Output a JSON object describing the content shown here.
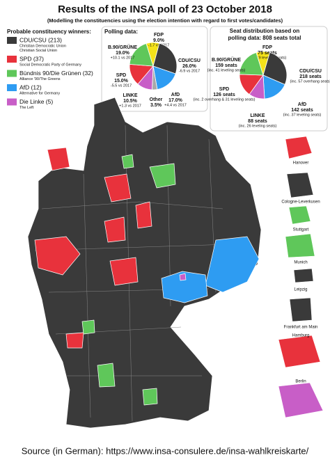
{
  "header": {
    "title": "Results of the INSA poll of 23 October 2018",
    "subtitle": "(Modelling the constituencies using the election intention with regard to first votes/candidates)"
  },
  "legend": {
    "title": "Probable constituency winners:",
    "items": [
      {
        "label": "CDU/CSU (213)",
        "description": [
          "Christian Democratic Union",
          "Christian Social Union"
        ],
        "color": "#3a3a3a"
      },
      {
        "label": "SPD (37)",
        "description": [
          "Social Democratic Party of Germany"
        ],
        "color": "#e8323c"
      },
      {
        "label": "Bündnis 90/Die Grünen (32)",
        "description": [
          "Alliance '90/The Greens"
        ],
        "color": "#5fc75a"
      },
      {
        "label": "AfD (12)",
        "description": [
          "Alternative for Germany"
        ],
        "color": "#2e9cf2"
      },
      {
        "label": "Die Linke (5)",
        "description": [
          "The Left"
        ],
        "color": "#c85ec7"
      }
    ]
  },
  "polling": {
    "title": "Polling data:",
    "slices": [
      {
        "name": "FDP",
        "value": 9.0,
        "value_label": "9.0%",
        "note": "-1.7 vs 2017",
        "color": "#f5e31a"
      },
      {
        "name": "CDU/CSU",
        "value": 26.0,
        "value_label": "26.0%",
        "note": "-6.9 vs 2017",
        "color": "#3a3a3a"
      },
      {
        "name": "AfD",
        "value": 17.0,
        "value_label": "17.0%",
        "note": "+4.4 vs 2017",
        "color": "#2e9cf2"
      },
      {
        "name": "Other",
        "value": 3.5,
        "value_label": "3.5%",
        "color": "#a8a8a8"
      },
      {
        "name": "LINKE",
        "value": 10.5,
        "value_label": "10.5%",
        "note": "+1.3 vs 2017",
        "color": "#c85ec7"
      },
      {
        "name": "SPD",
        "value": 15.0,
        "value_label": "15.0%",
        "note": "-5.5 vs 2017",
        "color": "#e8323c"
      },
      {
        "name": "B.90/GRÜNE",
        "value": 19.0,
        "value_label": "19.0%",
        "note": "+10.1 vs 2017",
        "color": "#5fc75a"
      }
    ]
  },
  "seats": {
    "title": [
      "Seat distribution based on",
      "polling data: 808 seats total"
    ],
    "slices": [
      {
        "name": "FDP",
        "value": 75,
        "value_label": "75 seats",
        "note": "(inc. 19 leveling seats)",
        "color": "#f5e31a"
      },
      {
        "name": "CDU/CSU",
        "value": 218,
        "value_label": "218 seats",
        "note": "(inc. 57 overhang seats)",
        "color": "#3a3a3a"
      },
      {
        "name": "AfD",
        "value": 142,
        "value_label": "142 seats",
        "note": "(inc. 37 leveling seats)",
        "color": "#2e9cf2"
      },
      {
        "name": "LINKE",
        "value": 88,
        "value_label": "88 seats",
        "note": "(inc. 26 leveling seats)",
        "color": "#c85ec7"
      },
      {
        "name": "SPD",
        "value": 126,
        "value_label": "126 seats",
        "note": "(inc. 2 overhang & 31 leveling seats)",
        "color": "#e8323c"
      },
      {
        "name": "B.90/GRÜNE",
        "value": 159,
        "value_label": "159 seats",
        "note": "(inc. 41 leveling seats)",
        "color": "#5fc75a"
      }
    ]
  },
  "insets": [
    "Hanover",
    "Cologne-Leverkusen",
    "Stuttgart",
    "Munich",
    "Leipzig",
    "Frankfurt am Main",
    "Hamburg",
    "Berlin"
  ],
  "footer": "Source (in German): https://www.insa-consulere.de/insa-wahlkreiskarte/"
}
